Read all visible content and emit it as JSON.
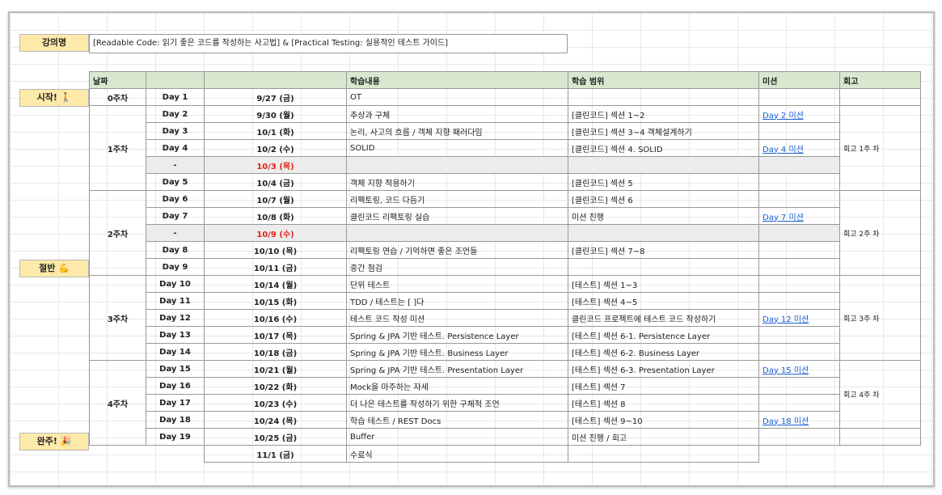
{
  "course": {
    "label": "강의명",
    "title": "[Readable Code: 읽기 좋은 코드를 작성하는 사고법] & [Practical Testing: 실용적인 테스트 가이드]"
  },
  "side_labels": [
    "시작! 🚶",
    "절반 💪",
    "완주! 🎉"
  ],
  "headers": {
    "week": "날짜",
    "day": "",
    "date": "",
    "content": "학습내용",
    "scope": "학습 범위",
    "review": "미션",
    "retro": "회고"
  },
  "weeks": [
    "0주차",
    "1주차",
    "2주차",
    "3주차",
    "4주차"
  ],
  "retros": [
    "회고 1주 차",
    "회고 2주 차",
    "회고 3주 차",
    "회고 4주 차"
  ],
  "rows": [
    {
      "day": "Day 1",
      "date": "9/27 (금)",
      "content": "OT",
      "scope": "",
      "review": ""
    },
    {
      "day": "Day 2",
      "date": "9/30 (월)",
      "content": "추상과 구체",
      "scope": "[클린코드] 섹션 1~2",
      "review": "Day 2 미션"
    },
    {
      "day": "Day 3",
      "date": "10/1 (화)",
      "content": "논리, 사고의 흐름 / 객체 지향 패러다임",
      "scope": "[클린코드] 섹션 3~4 객체설계하기",
      "review": ""
    },
    {
      "day": "Day 4",
      "date": "10/2 (수)",
      "content": "SOLID",
      "scope": "[클린코드] 섹션 4. SOLID",
      "review": "Day 4 미션"
    },
    {
      "day": "-",
      "date": "10/3 (목)",
      "content": "",
      "scope": "",
      "review": ""
    },
    {
      "day": "Day 5",
      "date": "10/4 (금)",
      "content": "객체 지향 적용하기",
      "scope": "[클린코드] 섹션 5",
      "review": ""
    },
    {
      "day": "Day 6",
      "date": "10/7 (월)",
      "content": "리팩토링, 코드 다듬기",
      "scope": "[클린코드] 섹션 6",
      "review": ""
    },
    {
      "day": "Day 7",
      "date": "10/8 (화)",
      "content": "클린코드 리팩토링 실습",
      "scope": "미션 진행",
      "review": "Day 7 미션"
    },
    {
      "day": "-",
      "date": "10/9 (수)",
      "content": "",
      "scope": "",
      "review": ""
    },
    {
      "day": "Day 8",
      "date": "10/10 (목)",
      "content": "리팩토링 연습 / 기억하면 좋은 조언들",
      "scope": "[클린코드] 섹션 7~8",
      "review": ""
    },
    {
      "day": "Day 9",
      "date": "10/11 (금)",
      "content": "중간 점검",
      "scope": "",
      "review": ""
    },
    {
      "day": "Day 10",
      "date": "10/14 (월)",
      "content": "단위 테스트",
      "scope": "[테스트] 섹션 1~3",
      "review": ""
    },
    {
      "day": "Day 11",
      "date": "10/15 (화)",
      "content": "TDD / 테스트는 [ ]다",
      "scope": "[테스트] 섹션 4~5",
      "review": ""
    },
    {
      "day": "Day 12",
      "date": "10/16 (수)",
      "content": "테스트 코드 작성 미션",
      "scope": "클린코드 프로젝트에 테스트 코드 작성하기",
      "review": "Day 12 미션"
    },
    {
      "day": "Day 13",
      "date": "10/17 (목)",
      "content": "Spring & JPA 기반 테스트. Persistence Layer",
      "scope": "[테스트] 섹션 6-1. Persistence Layer",
      "review": ""
    },
    {
      "day": "Day 14",
      "date": "10/18 (금)",
      "content": "Spring & JPA 기반 테스트. Business Layer",
      "scope": "[테스트] 섹션 6-2. Business Layer",
      "review": ""
    },
    {
      "day": "Day 15",
      "date": "10/21 (월)",
      "content": "Spring & JPA 기반 테스트. Presentation Layer",
      "scope": "[테스트] 섹션 6-3. Presentation Layer",
      "review": "Day 15 미션"
    },
    {
      "day": "Day 16",
      "date": "10/22 (화)",
      "content": "Mock을 마주하는 자세",
      "scope": "[테스트] 섹션 7",
      "review": ""
    },
    {
      "day": "Day 17",
      "date": "10/23 (수)",
      "content": "더 나은 테스트를 작성하기 위한 구체적 조언",
      "scope": "[테스트] 섹션 8",
      "review": ""
    },
    {
      "day": "Day 18",
      "date": "10/24 (목)",
      "content": "학습 테스트 / REST Docs",
      "scope": "[테스트] 섹션 9~10",
      "review": "Day 18 미션"
    },
    {
      "day": "Day 19",
      "date": "10/25 (금)",
      "content": "Buffer",
      "scope": "미션 진행 / 회고",
      "review": ""
    },
    {
      "day": "",
      "date": "11/1 (금)",
      "content": "수료식",
      "scope": "",
      "review": ""
    }
  ]
}
